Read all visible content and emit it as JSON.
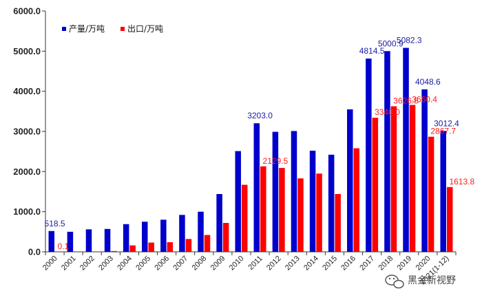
{
  "chart_data": {
    "type": "bar",
    "title": "",
    "xlabel": "",
    "ylabel": "",
    "ylim": [
      0,
      6000
    ],
    "yticks": [
      "0.0",
      "1000.0",
      "2000.0",
      "3000.0",
      "4000.0",
      "5000.0",
      "6000.0"
    ],
    "grid": false,
    "legend_position": "top-left",
    "categories": [
      "2000",
      "2001",
      "2002",
      "2003",
      "2004",
      "2005",
      "2006",
      "2007",
      "2008",
      "2009",
      "2010",
      "2011",
      "2012",
      "2013",
      "2014",
      "2015",
      "2016",
      "2017",
      "2018",
      "2019",
      "2020",
      "2021(1-12)"
    ],
    "series": [
      {
        "name": "产量/万吨",
        "color": "#0000CC",
        "label_color": "#1a1aa6",
        "values": [
          518.5,
          500,
          560,
          570,
          690,
          750,
          800,
          920,
          1000,
          1440,
          2510,
          3203.0,
          2990,
          3010,
          2520,
          2420,
          3550,
          4814.5,
          5000.9,
          5082.3,
          4048.6,
          3012.4
        ],
        "labels": [
          {
            "index": 0,
            "text": "518.5"
          },
          {
            "index": 11,
            "text": "3203.0"
          },
          {
            "index": 17,
            "text": "4814.5"
          },
          {
            "index": 18,
            "text": "5000.9"
          },
          {
            "index": 19,
            "text": "5082.3"
          },
          {
            "index": 20,
            "text": "4048.6"
          },
          {
            "index": 21,
            "text": "3012.4"
          }
        ]
      },
      {
        "name": "出口/万吨",
        "color": "#FF0000",
        "label_color": "#ff1a1a",
        "values": [
          0.1,
          0,
          0,
          20,
          160,
          230,
          240,
          320,
          420,
          720,
          1670,
          2129.5,
          2090,
          1830,
          1950,
          1440,
          2580,
          3340.0,
          3626.5,
          3660.4,
          2867.7,
          1613.8
        ],
        "labels": [
          {
            "index": 0,
            "text": "0.1"
          },
          {
            "index": 11,
            "text": "2129.5"
          },
          {
            "index": 17,
            "text": "3340.0"
          },
          {
            "index": 18,
            "text": "3626.5"
          },
          {
            "index": 19,
            "text": "3660.4"
          },
          {
            "index": 20,
            "text": "2867.7"
          },
          {
            "index": 21,
            "text": "1613.8"
          }
        ]
      }
    ]
  },
  "watermark": {
    "text": "黑金新视野"
  }
}
